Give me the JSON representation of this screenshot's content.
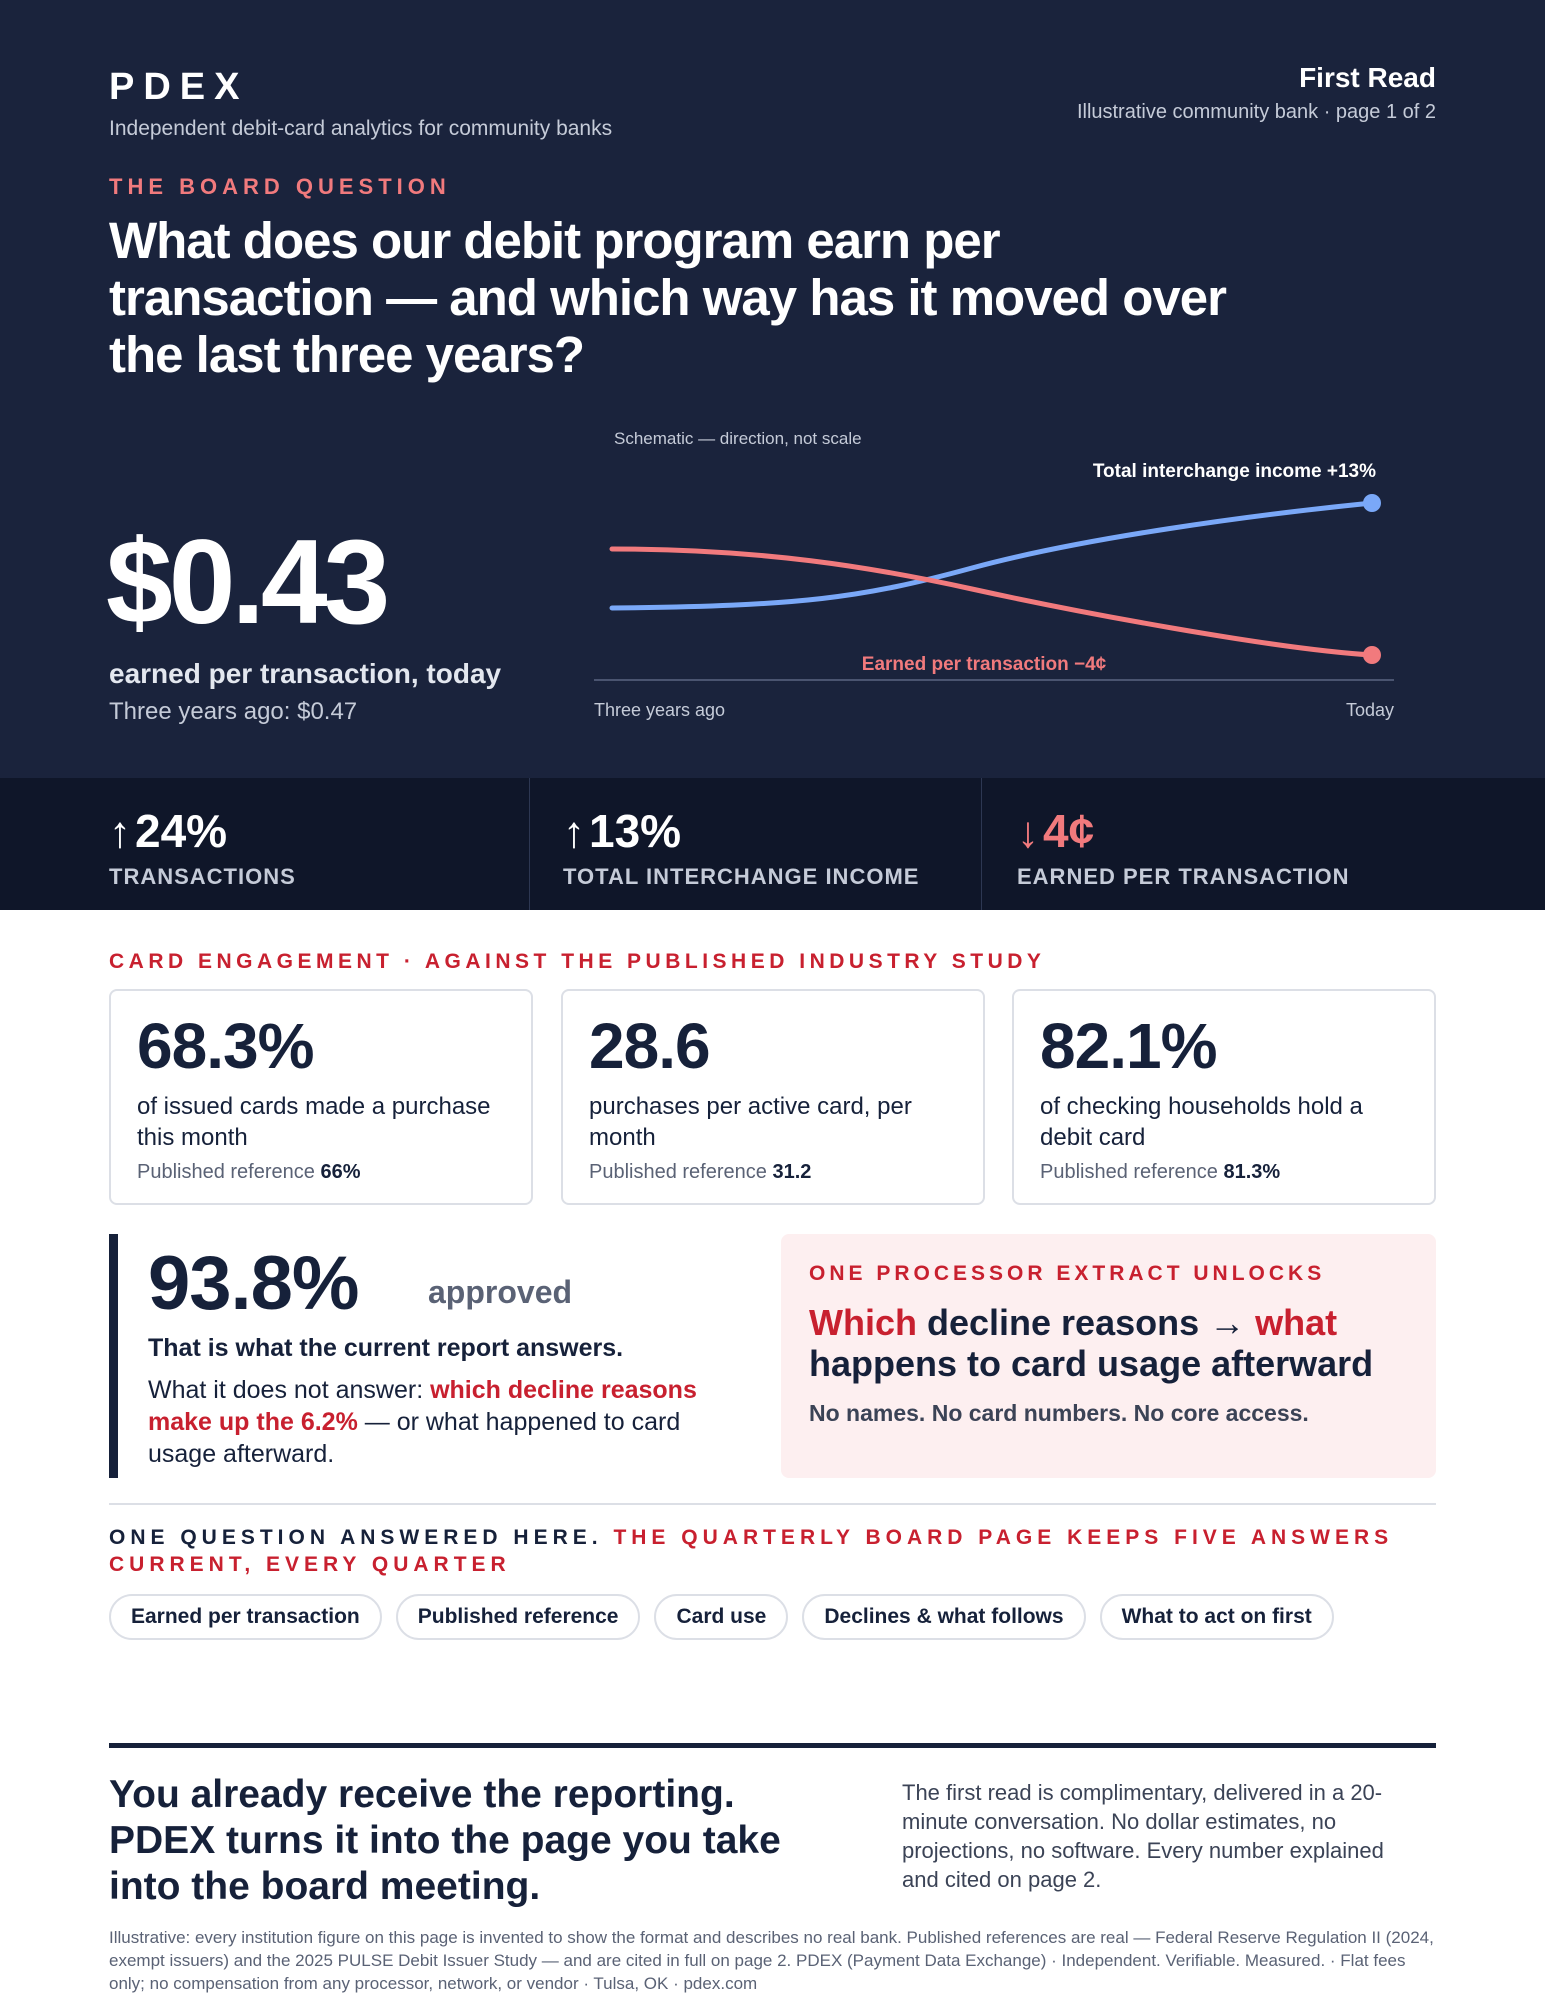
{
  "header": {
    "brand": "PDEX",
    "tagline": "Independent debit-card analytics for community banks",
    "doc_title": "First Read",
    "page_info": "Illustrative community bank · page 1 of 2"
  },
  "hero": {
    "eyebrow": "THE BOARD QUESTION",
    "question": "What does our debit program earn per transaction — and which way has it moved over the last three years?",
    "big_value": "$0.43",
    "big_label": "earned per transaction, today",
    "previous": "Three years ago: $0.47"
  },
  "chart_data": {
    "type": "line",
    "title": "Schematic — direction, not scale",
    "x": [
      "Three years ago",
      "Today"
    ],
    "series": [
      {
        "name": "Total interchange income",
        "change_label": "+13%",
        "values": [
          100,
          113
        ],
        "color": "#7aa8f8"
      },
      {
        "name": "Earned per transaction",
        "change_label": "−4¢",
        "values": [
          0.47,
          0.43
        ],
        "color": "#f17a7d"
      }
    ]
  },
  "stats": [
    {
      "value": "24%",
      "direction": "up",
      "label": "TRANSACTIONS"
    },
    {
      "value": "13%",
      "direction": "up",
      "label": "TOTAL INTERCHANGE INCOME"
    },
    {
      "value": "4¢",
      "direction": "down",
      "label": "EARNED PER TRANSACTION"
    }
  ],
  "engagement": {
    "eyebrow": "CARD ENGAGEMENT · AGAINST THE PUBLISHED INDUSTRY STUDY",
    "ref_prefix": "Published reference",
    "cards": [
      {
        "value": "68.3%",
        "description": "of issued cards made a purchase this month",
        "reference": "66%"
      },
      {
        "value": "28.6",
        "description": "purchases per active card, per month",
        "reference": "31.2"
      },
      {
        "value": "82.1%",
        "description": "of checking households hold a debit card",
        "reference": "81.3%"
      }
    ]
  },
  "approval": {
    "value": "93.8%",
    "word": "approved",
    "lead": "That is what the current report answers.",
    "text_before": "What it does not answer: ",
    "text_highlight": "which decline reasons make up the 6.2%",
    "text_after": " — or what happened to card usage afterward."
  },
  "unlock": {
    "eyebrow": "ONE PROCESSOR EXTRACT UNLOCKS",
    "title_part1": "Which",
    "title_part2": " decline reasons → ",
    "title_part3": "what",
    "title_part4": " happens to card usage afterward",
    "note": "No names. No card numbers. No core access."
  },
  "answers": {
    "eyebrow_dark": "ONE QUESTION ANSWERED HERE. ",
    "eyebrow_red": "THE QUARTERLY BOARD PAGE KEEPS FIVE ANSWERS CURRENT, EVERY QUARTER",
    "chips": [
      "Earned per transaction",
      "Published reference",
      "Card use",
      "Declines & what follows",
      "What to act on first"
    ]
  },
  "closing": {
    "headline": "You already receive the reporting. PDEX turns it into the page you take into the board meeting.",
    "side": "The first read is complimentary, delivered in a 20-minute conversation. No dollar estimates, no projections, no software. Every number explained and cited on page 2.",
    "footnote": "Illustrative: every institution figure on this page is invented to show the format and describes no real bank. Published references are real — Federal Reserve Regulation II (2024, exempt issuers) and the 2025 PULSE Debit Issuer Study — and are cited in full on page 2. PDEX (Payment Data Exchange) · Independent. Verifiable. Measured. · Flat fees only; no compensation from any processor, network, or vendor · Tulsa, OK · pdex.com"
  },
  "colors": {
    "navy": "#1a233c",
    "navy_dark": "#0f1629",
    "accent_red": "#c8202f",
    "coral": "#f17a7d",
    "blue_line": "#7aa8f8"
  }
}
